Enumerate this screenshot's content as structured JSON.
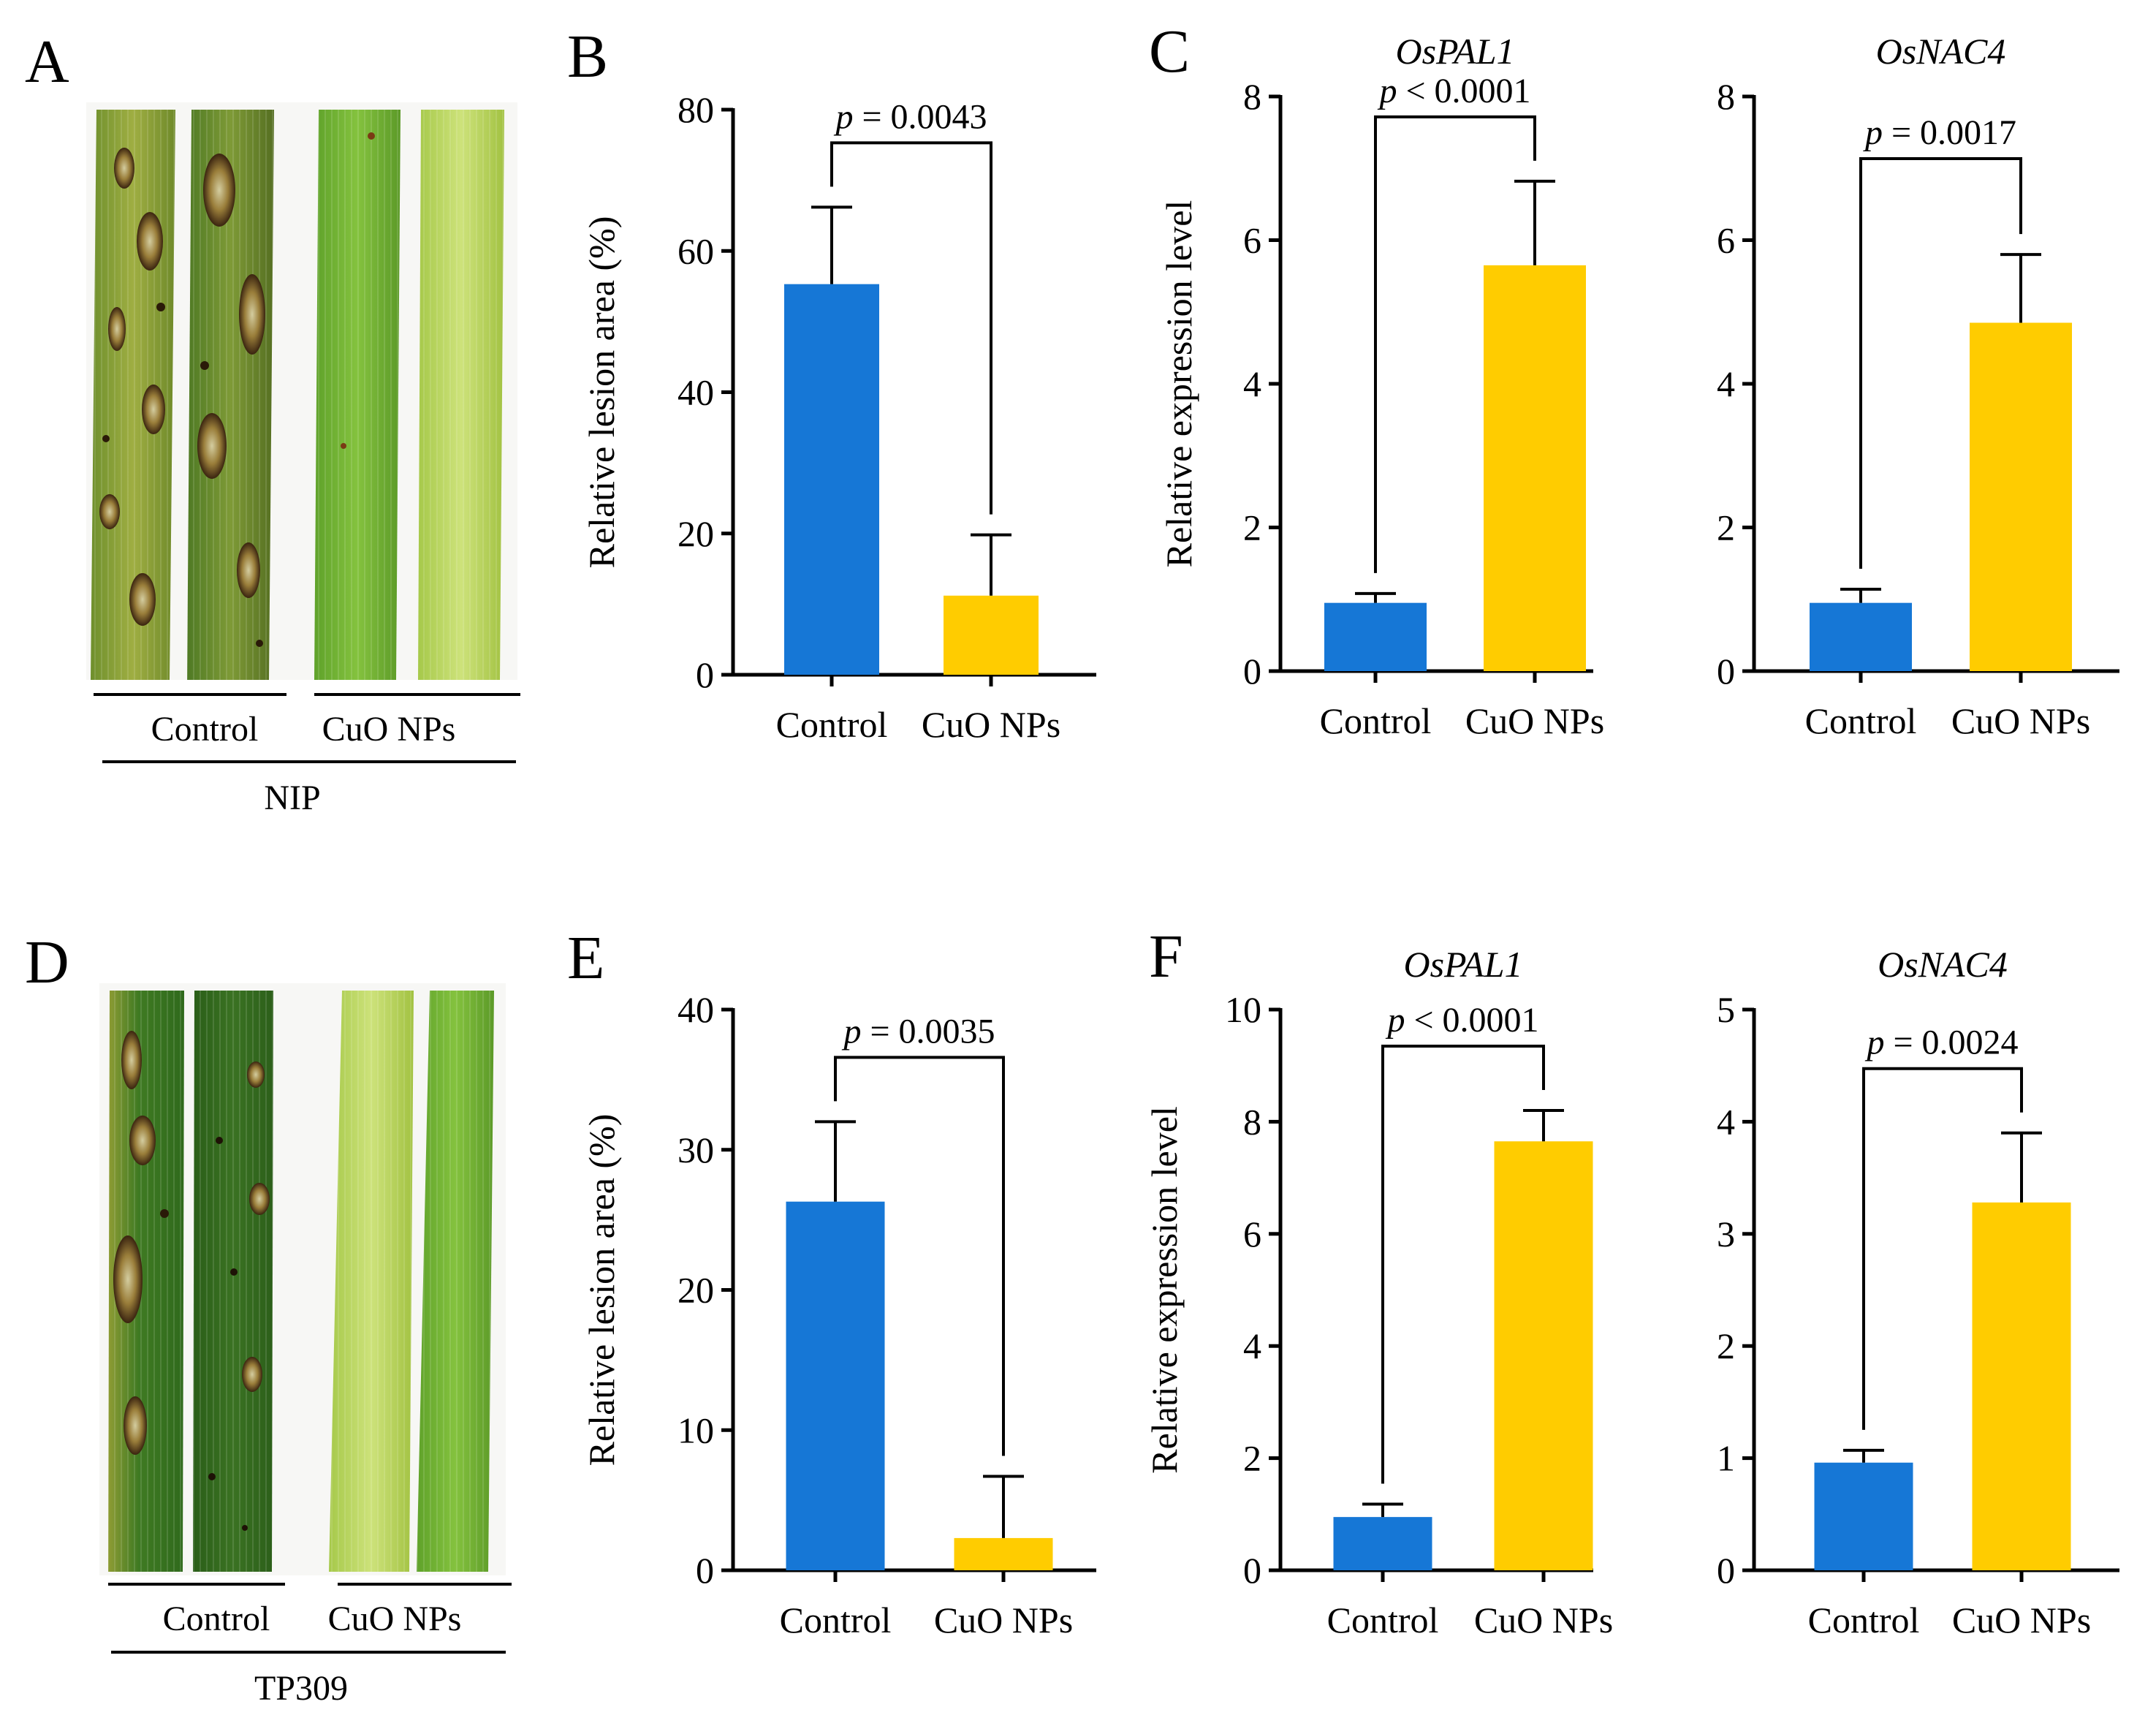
{
  "colors": {
    "control": "#1677d6",
    "cuo": "#ffcc00",
    "axis": "#000000"
  },
  "panels": {
    "A": {
      "letter": "A",
      "group_labels": [
        "Control",
        "CuO NPs"
      ],
      "cultivar": "NIP",
      "leaves": [
        {
          "group": "Control",
          "appearance": "lesioned"
        },
        {
          "group": "Control",
          "appearance": "lesioned"
        },
        {
          "group": "CuO NPs",
          "appearance": "green"
        },
        {
          "group": "CuO NPs",
          "appearance": "pale-green"
        }
      ]
    },
    "D": {
      "letter": "D",
      "group_labels": [
        "Control",
        "CuO NPs"
      ],
      "cultivar": "TP309",
      "leaves": [
        {
          "group": "Control",
          "appearance": "lesioned"
        },
        {
          "group": "Control",
          "appearance": "dark-green-spotted"
        },
        {
          "group": "CuO NPs",
          "appearance": "pale-green"
        },
        {
          "group": "CuO NPs",
          "appearance": "green"
        }
      ]
    }
  },
  "chart_data": [
    {
      "id": "B",
      "letter": "B",
      "type": "bar",
      "gene": "",
      "ylabel": "Relative lesion area (%)",
      "categories": [
        "Control",
        "CuO NPs"
      ],
      "values": [
        55.3,
        11.2
      ],
      "errors": [
        10.9,
        8.6
      ],
      "ylim": [
        0,
        80
      ],
      "yticks": [
        0,
        20,
        40,
        60,
        80
      ],
      "p_prefix": "p",
      "p_text": " = 0.0043"
    },
    {
      "id": "C1",
      "letter": "C",
      "type": "bar",
      "gene": "OsPAL1",
      "ylabel": "Relative expression level",
      "categories": [
        "Control",
        "CuO NPs"
      ],
      "values": [
        0.95,
        5.65
      ],
      "errors": [
        0.13,
        1.17
      ],
      "ylim": [
        0,
        8
      ],
      "yticks": [
        0,
        2,
        4,
        6,
        8
      ],
      "p_prefix": "p",
      "p_text": " < 0.0001"
    },
    {
      "id": "C2",
      "letter": "",
      "type": "bar",
      "gene": "OsNAC4",
      "ylabel": "",
      "categories": [
        "Control",
        "CuO NPs"
      ],
      "values": [
        0.95,
        4.85
      ],
      "errors": [
        0.19,
        0.95
      ],
      "ylim": [
        0,
        8
      ],
      "yticks": [
        0,
        2,
        4,
        6,
        8
      ],
      "p_prefix": "p",
      "p_text": " = 0.0017"
    },
    {
      "id": "E",
      "letter": "E",
      "type": "bar",
      "gene": "",
      "ylabel": "Relative lesion area (%)",
      "categories": [
        "Control",
        "CuO NPs"
      ],
      "values": [
        26.3,
        2.3
      ],
      "errors": [
        5.7,
        4.4
      ],
      "ylim": [
        0,
        40
      ],
      "yticks": [
        0,
        10,
        20,
        30,
        40
      ],
      "p_prefix": "p",
      "p_text": " = 0.0035"
    },
    {
      "id": "F1",
      "letter": "F",
      "type": "bar",
      "gene": "OsPAL1",
      "ylabel": "Relative expression level",
      "categories": [
        "Control",
        "CuO NPs"
      ],
      "values": [
        0.95,
        7.65
      ],
      "errors": [
        0.23,
        0.55
      ],
      "ylim": [
        0,
        10
      ],
      "yticks": [
        0,
        2,
        4,
        6,
        8,
        10
      ],
      "p_prefix": "p",
      "p_text": " < 0.0001"
    },
    {
      "id": "F2",
      "letter": "",
      "type": "bar",
      "gene": "OsNAC4",
      "ylabel": "",
      "categories": [
        "Control",
        "CuO NPs"
      ],
      "values": [
        0.96,
        3.28
      ],
      "errors": [
        0.11,
        0.62
      ],
      "ylim": [
        0,
        5
      ],
      "yticks": [
        0,
        1,
        2,
        3,
        4,
        5
      ],
      "p_prefix": "p",
      "p_text": " = 0.0024"
    }
  ]
}
